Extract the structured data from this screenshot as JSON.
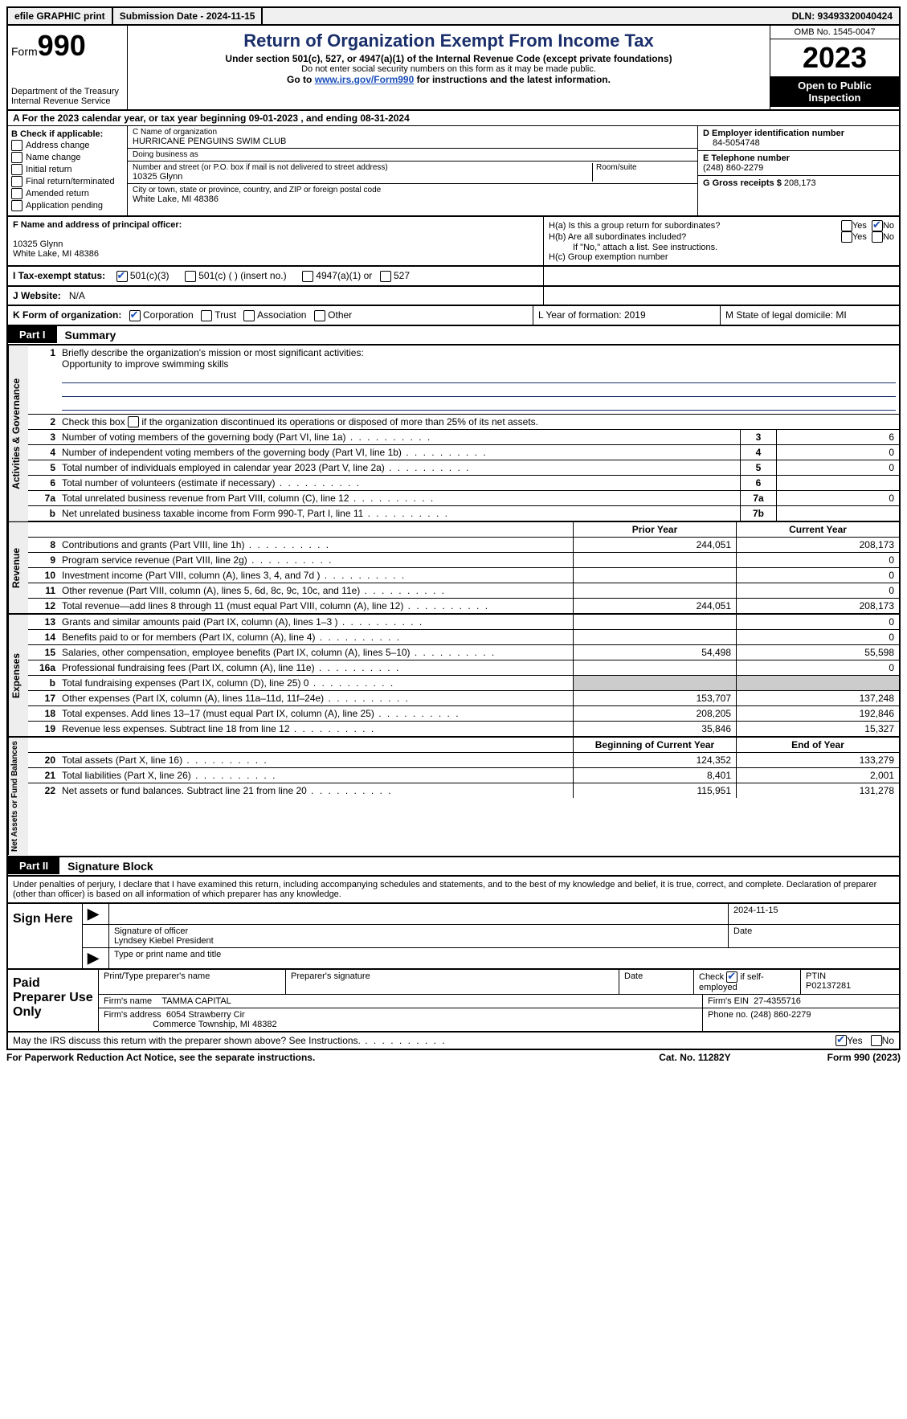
{
  "topbar": {
    "efile": "efile GRAPHIC print",
    "submission_label": "Submission Date - 2024-11-15",
    "dln_label": "DLN: 93493320040424"
  },
  "header": {
    "form_prefix": "Form",
    "form_number": "990",
    "dept": "Department of the Treasury",
    "irs": "Internal Revenue Service",
    "title": "Return of Organization Exempt From Income Tax",
    "sub1": "Under section 501(c), 527, or 4947(a)(1) of the Internal Revenue Code (except private foundations)",
    "sub2": "Do not enter social security numbers on this form as it may be made public.",
    "sub3_pre": "Go to ",
    "sub3_link": "www.irs.gov/Form990",
    "sub3_post": " for instructions and the latest information.",
    "omb": "OMB No. 1545-0047",
    "year": "2023",
    "inspection": "Open to Public Inspection"
  },
  "lineA": "A For the 2023 calendar year, or tax year beginning 09-01-2023   , and ending 08-31-2024",
  "boxB": {
    "header": "B Check if applicable:",
    "items": [
      "Address change",
      "Name change",
      "Initial return",
      "Final return/terminated",
      "Amended return",
      "Application pending"
    ]
  },
  "boxC": {
    "name_label": "C Name of organization",
    "name": "HURRICANE PENGUINS SWIM CLUB",
    "dba_label": "Doing business as",
    "street_label": "Number and street (or P.O. box if mail is not delivered to street address)",
    "street": "10325 Glynn",
    "room_label": "Room/suite",
    "city_label": "City or town, state or province, country, and ZIP or foreign postal code",
    "city": "White Lake, MI  48386"
  },
  "boxD": {
    "label": "D Employer identification number",
    "value": "84-5054748"
  },
  "boxE": {
    "label": "E Telephone number",
    "value": "(248) 860-2279"
  },
  "boxG": {
    "label": "G Gross receipts $",
    "value": "208,173"
  },
  "boxF": {
    "label": "F  Name and address of principal officer:",
    "line1": "10325 Glynn",
    "line2": "White Lake, MI  48386"
  },
  "boxH": {
    "a": "H(a)  Is this a group return for subordinates?",
    "b": "H(b)  Are all subordinates included?",
    "note": "If \"No,\" attach a list. See instructions.",
    "c": "H(c)  Group exemption number",
    "yes": "Yes",
    "no": "No"
  },
  "rowI": {
    "label": "I   Tax-exempt status:",
    "opts": [
      "501(c)(3)",
      "501(c) (  ) (insert no.)",
      "4947(a)(1) or",
      "527"
    ]
  },
  "rowJ": {
    "label": "J   Website:",
    "value": "N/A"
  },
  "rowK": {
    "label": "K Form of organization:",
    "opts": [
      "Corporation",
      "Trust",
      "Association",
      "Other"
    ]
  },
  "rowL": {
    "label": "L Year of formation: 2019"
  },
  "rowM": {
    "label": "M State of legal domicile: MI"
  },
  "part1": {
    "tab": "Part I",
    "title": "Summary"
  },
  "summary": {
    "gov_label": "Activities & Governance",
    "rev_label": "Revenue",
    "exp_label": "Expenses",
    "na_label": "Net Assets or Fund Balances",
    "l1": "Briefly describe the organization's mission or most significant activities:",
    "mission": "Opportunity to improve swimming skills",
    "l2": "Check this box      if the organization discontinued its operations or disposed of more than 25% of its net assets.",
    "rows_gov": [
      {
        "n": "3",
        "d": "Number of voting members of the governing body (Part VI, line 1a)",
        "c": "3",
        "v": "6"
      },
      {
        "n": "4",
        "d": "Number of independent voting members of the governing body (Part VI, line 1b)",
        "c": "4",
        "v": "0"
      },
      {
        "n": "5",
        "d": "Total number of individuals employed in calendar year 2023 (Part V, line 2a)",
        "c": "5",
        "v": "0"
      },
      {
        "n": "6",
        "d": "Total number of volunteers (estimate if necessary)",
        "c": "6",
        "v": ""
      },
      {
        "n": "7a",
        "d": "Total unrelated business revenue from Part VIII, column (C), line 12",
        "c": "7a",
        "v": "0"
      },
      {
        "n": "b",
        "d": "Net unrelated business taxable income from Form 990-T, Part I, line 11",
        "c": "7b",
        "v": ""
      }
    ],
    "hdr_prior": "Prior Year",
    "hdr_current": "Current Year",
    "rows_rev": [
      {
        "n": "8",
        "d": "Contributions and grants (Part VIII, line 1h)",
        "p": "244,051",
        "c": "208,173"
      },
      {
        "n": "9",
        "d": "Program service revenue (Part VIII, line 2g)",
        "p": "",
        "c": "0"
      },
      {
        "n": "10",
        "d": "Investment income (Part VIII, column (A), lines 3, 4, and 7d )",
        "p": "",
        "c": "0"
      },
      {
        "n": "11",
        "d": "Other revenue (Part VIII, column (A), lines 5, 6d, 8c, 9c, 10c, and 11e)",
        "p": "",
        "c": "0"
      },
      {
        "n": "12",
        "d": "Total revenue—add lines 8 through 11 (must equal Part VIII, column (A), line 12)",
        "p": "244,051",
        "c": "208,173"
      }
    ],
    "rows_exp": [
      {
        "n": "13",
        "d": "Grants and similar amounts paid (Part IX, column (A), lines 1–3 )",
        "p": "",
        "c": "0"
      },
      {
        "n": "14",
        "d": "Benefits paid to or for members (Part IX, column (A), line 4)",
        "p": "",
        "c": "0"
      },
      {
        "n": "15",
        "d": "Salaries, other compensation, employee benefits (Part IX, column (A), lines 5–10)",
        "p": "54,498",
        "c": "55,598"
      },
      {
        "n": "16a",
        "d": "Professional fundraising fees (Part IX, column (A), line 11e)",
        "p": "",
        "c": "0"
      },
      {
        "n": "b",
        "d": "Total fundraising expenses (Part IX, column (D), line 25) 0",
        "p": "SHADE",
        "c": "SHADE"
      },
      {
        "n": "17",
        "d": "Other expenses (Part IX, column (A), lines 11a–11d, 11f–24e)",
        "p": "153,707",
        "c": "137,248"
      },
      {
        "n": "18",
        "d": "Total expenses. Add lines 13–17 (must equal Part IX, column (A), line 25)",
        "p": "208,205",
        "c": "192,846"
      },
      {
        "n": "19",
        "d": "Revenue less expenses. Subtract line 18 from line 12",
        "p": "35,846",
        "c": "15,327"
      }
    ],
    "hdr_begin": "Beginning of Current Year",
    "hdr_end": "End of Year",
    "rows_na": [
      {
        "n": "20",
        "d": "Total assets (Part X, line 16)",
        "p": "124,352",
        "c": "133,279"
      },
      {
        "n": "21",
        "d": "Total liabilities (Part X, line 26)",
        "p": "8,401",
        "c": "2,001"
      },
      {
        "n": "22",
        "d": "Net assets or fund balances. Subtract line 21 from line 20",
        "p": "115,951",
        "c": "131,278"
      }
    ]
  },
  "part2": {
    "tab": "Part II",
    "title": "Signature Block"
  },
  "declare": "Under penalties of perjury, I declare that I have examined this return, including accompanying schedules and statements, and to the best of my knowledge and belief, it is true, correct, and complete. Declaration of preparer (other than officer) is based on all information of which preparer has any knowledge.",
  "sign": {
    "here": "Sign Here",
    "date": "2024-11-15",
    "sig_label": "Signature of officer",
    "date_label": "Date",
    "name": "Lyndsey Kiebel  President",
    "type_label": "Type or print name and title"
  },
  "paid": {
    "label": "Paid Preparer Use Only",
    "h1": "Print/Type preparer's name",
    "h2": "Preparer's signature",
    "h3": "Date",
    "h4_pre": "Check",
    "h4_post": "if self-employed",
    "h5": "PTIN",
    "ptin": "P02137281",
    "firm_label": "Firm's name",
    "firm": "TAMMA CAPITAL",
    "ein_label": "Firm's EIN",
    "ein": "27-4355716",
    "addr_label": "Firm's address",
    "addr1": "6054 Strawberry Cir",
    "addr2": "Commerce Township, MI  48382",
    "phone_label": "Phone no.",
    "phone": "(248) 860-2279"
  },
  "discuss": {
    "q": "May the IRS discuss this return with the preparer shown above? See Instructions.",
    "yes": "Yes",
    "no": "No"
  },
  "footer": {
    "left": "For Paperwork Reduction Act Notice, see the separate instructions.",
    "mid": "Cat. No. 11282Y",
    "right": "Form 990 (2023)"
  }
}
